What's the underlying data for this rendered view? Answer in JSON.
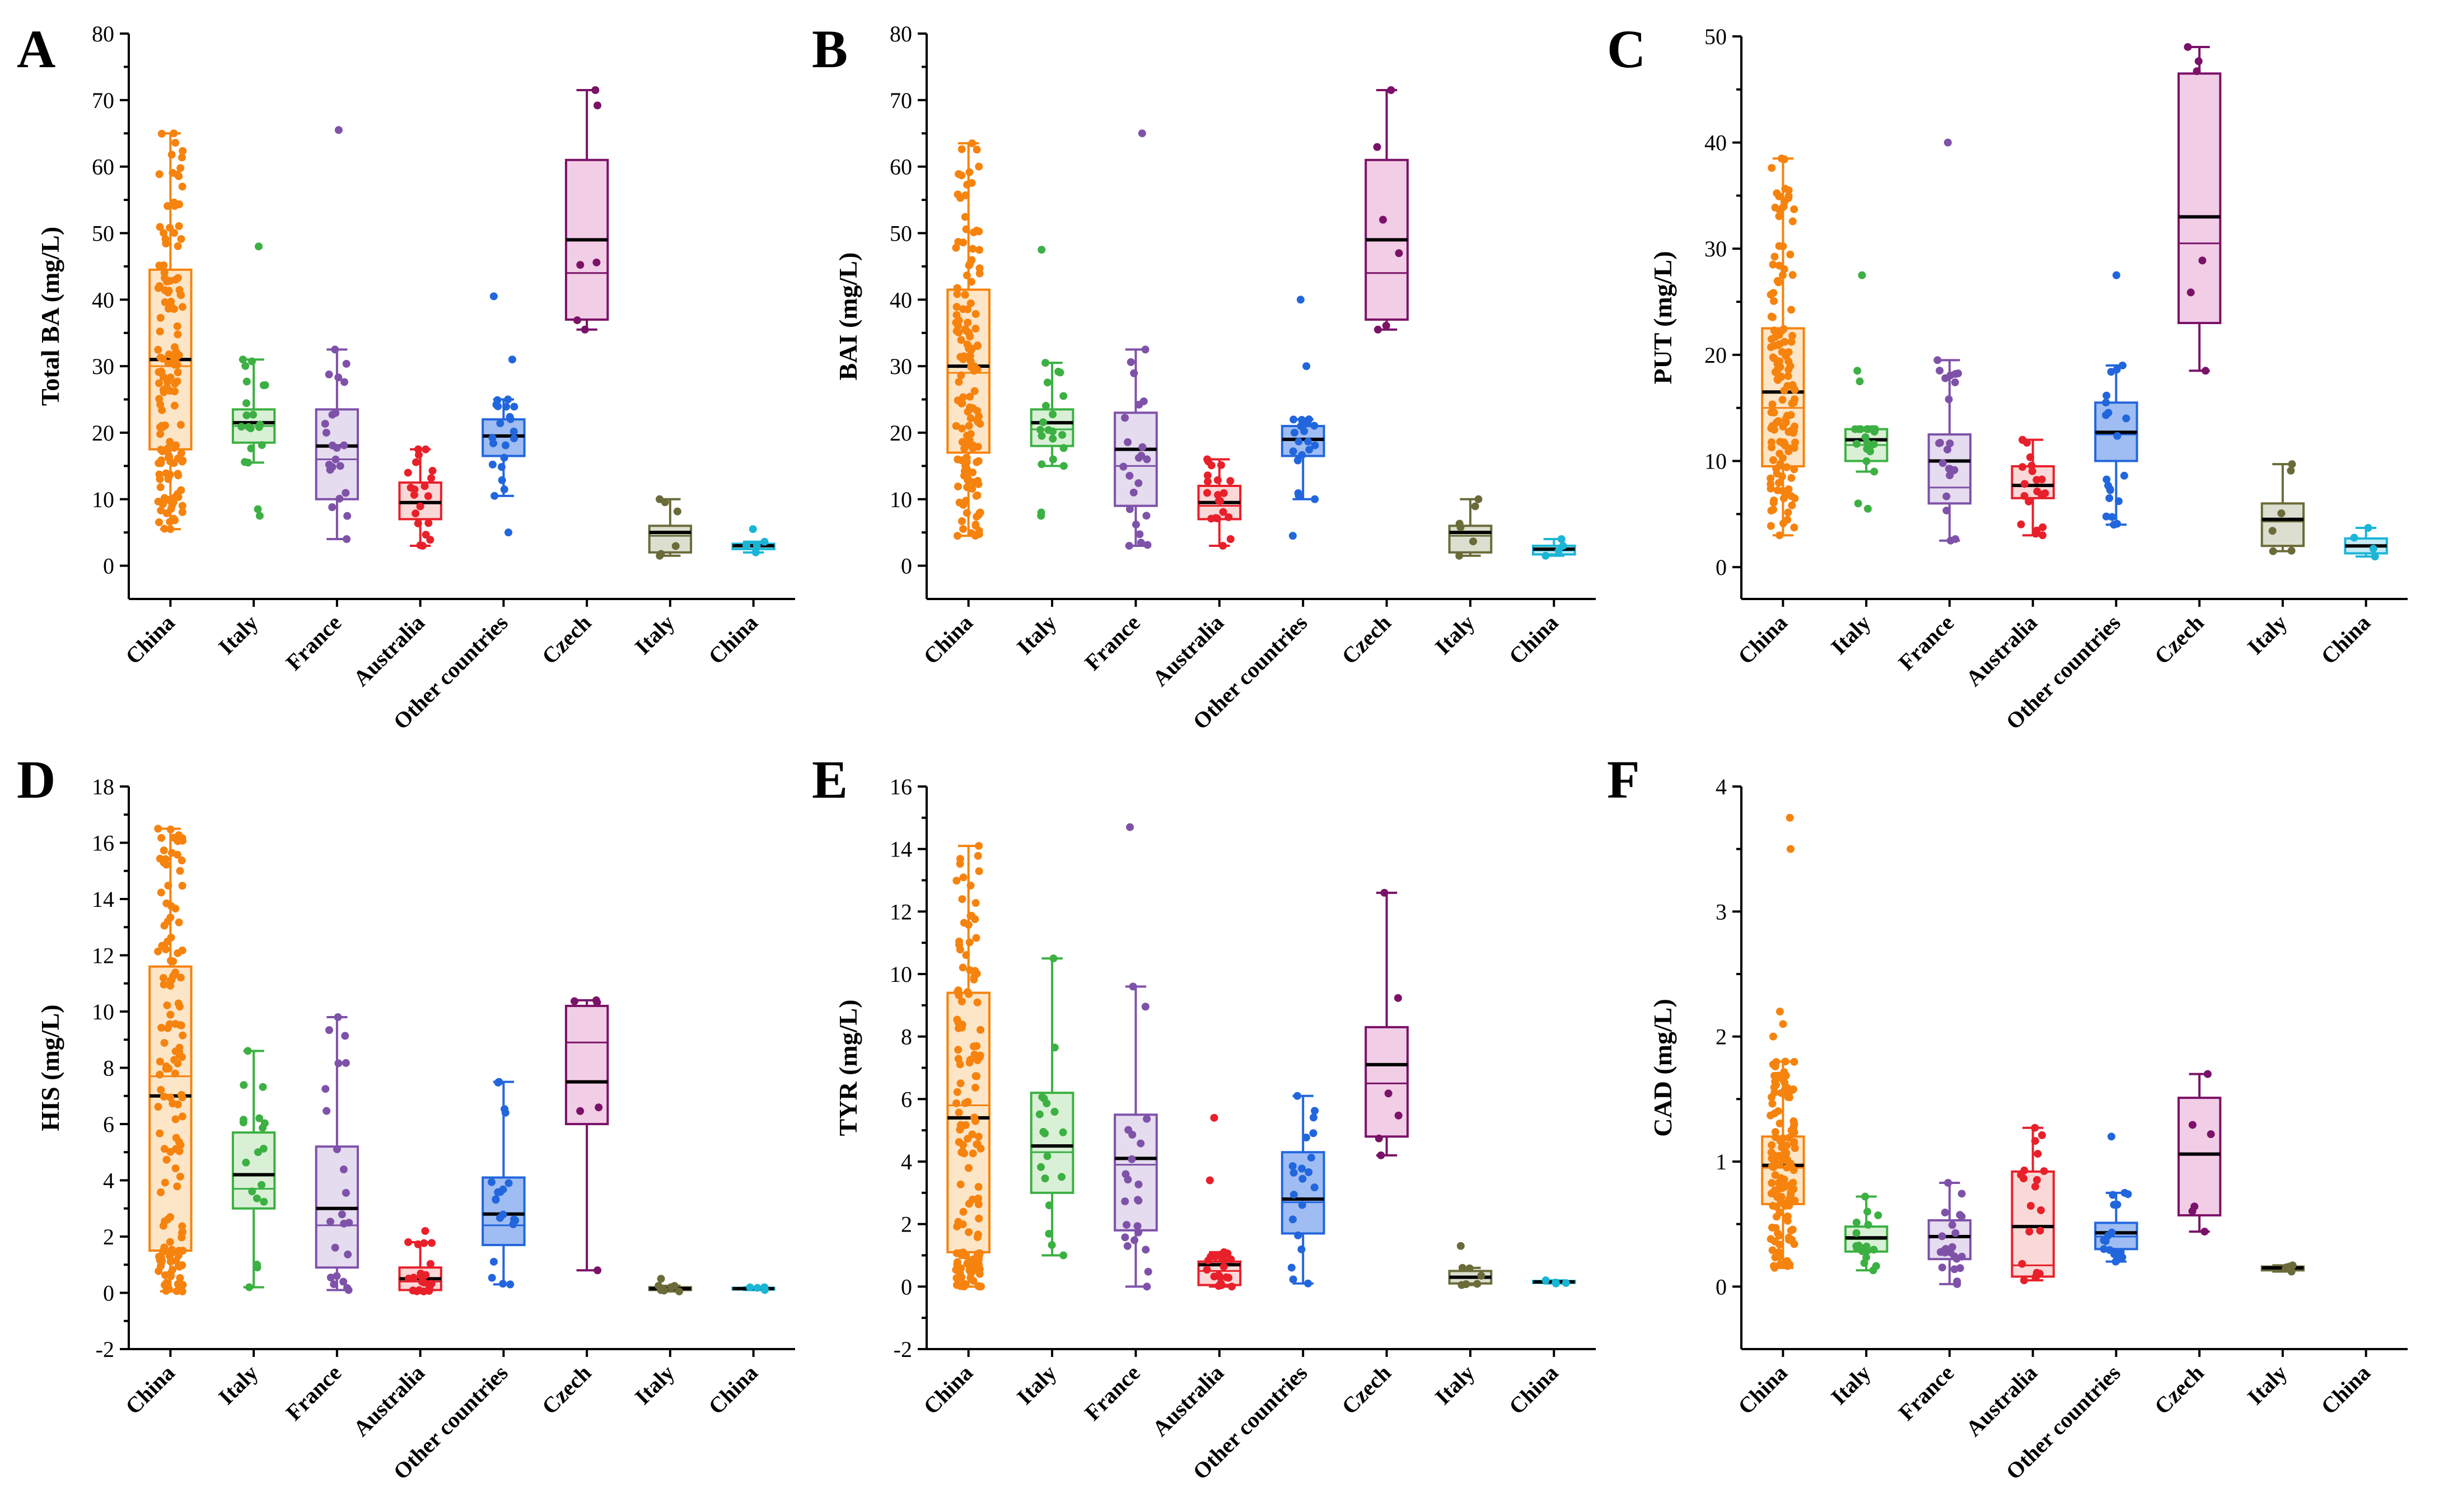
{
  "chart_data": [
    {
      "letter": "A",
      "type": "box",
      "ylabel": "Total BA (mg/L)",
      "ylim": [
        -5,
        80
      ],
      "yticks": [
        0,
        10,
        20,
        30,
        40,
        50,
        60,
        70,
        80
      ],
      "categories": [
        "China",
        "Italy",
        "France",
        "Australia",
        "Other countries",
        "Czech",
        "Italy",
        "China"
      ],
      "boxes": [
        {
          "min": 5.5,
          "q1": 17.5,
          "median": 31.0,
          "mean": 30.0,
          "q3": 44.5,
          "max": 65.0,
          "n": 140
        },
        {
          "min": 15.5,
          "q1": 18.5,
          "median": 21.5,
          "mean": 21.0,
          "q3": 23.5,
          "max": 31.0,
          "n": 18,
          "outliers": [
            7.5,
            8.5,
            48.0
          ]
        },
        {
          "min": 4.0,
          "q1": 10.0,
          "median": 18.0,
          "mean": 16.0,
          "q3": 23.5,
          "max": 32.5,
          "n": 22,
          "outliers": [
            65.5
          ]
        },
        {
          "min": 3.0,
          "q1": 7.0,
          "median": 9.5,
          "mean": 9.5,
          "q3": 12.5,
          "max": 17.5,
          "n": 20
        },
        {
          "min": 10.5,
          "q1": 16.5,
          "median": 19.5,
          "mean": 19.5,
          "q3": 22.0,
          "max": 25.0,
          "n": 20,
          "outliers": [
            5.0,
            31.0,
            40.5
          ]
        },
        {
          "min": 35.5,
          "q1": 37.0,
          "median": 49.0,
          "mean": 44.0,
          "q3": 61.0,
          "max": 71.5,
          "n": 6
        },
        {
          "min": 1.5,
          "q1": 2.0,
          "median": 5.0,
          "mean": 4.5,
          "q3": 6.0,
          "max": 10.0,
          "n": 6
        },
        {
          "min": 2.0,
          "q1": 2.5,
          "median": 3.0,
          "mean": 3.0,
          "q3": 3.3,
          "max": 3.6,
          "n": 4,
          "outliers": [
            5.5
          ]
        }
      ]
    },
    {
      "letter": "B",
      "type": "box",
      "ylabel": "BAI (mg/L)",
      "ylim": [
        -5,
        80
      ],
      "yticks": [
        0,
        10,
        20,
        30,
        40,
        50,
        60,
        70,
        80
      ],
      "categories": [
        "China",
        "Italy",
        "France",
        "Australia",
        "Other countries",
        "Czech",
        "Italy",
        "China"
      ],
      "boxes": [
        {
          "min": 4.5,
          "q1": 17.0,
          "median": 30.0,
          "mean": 29.0,
          "q3": 41.5,
          "max": 63.5,
          "n": 140
        },
        {
          "min": 15.0,
          "q1": 18.0,
          "median": 21.5,
          "mean": 20.5,
          "q3": 23.5,
          "max": 30.5,
          "n": 18,
          "outliers": [
            7.5,
            8.0,
            47.5
          ]
        },
        {
          "min": 3.0,
          "q1": 9.0,
          "median": 17.5,
          "mean": 15.0,
          "q3": 23.0,
          "max": 32.5,
          "n": 22,
          "outliers": [
            65.0
          ]
        },
        {
          "min": 3.0,
          "q1": 7.0,
          "median": 9.5,
          "mean": 9.0,
          "q3": 12.0,
          "max": 16.0,
          "n": 20
        },
        {
          "min": 10.0,
          "q1": 16.5,
          "median": 19.0,
          "mean": 19.0,
          "q3": 21.0,
          "max": 22.0,
          "n": 20,
          "outliers": [
            4.5,
            30.0,
            40.0
          ]
        },
        {
          "min": 35.5,
          "q1": 37.0,
          "median": 49.0,
          "mean": 44.0,
          "q3": 61.0,
          "max": 71.5,
          "n": 6
        },
        {
          "min": 1.5,
          "q1": 2.0,
          "median": 5.0,
          "mean": 4.5,
          "q3": 6.0,
          "max": 10.0,
          "n": 6
        },
        {
          "min": 1.5,
          "q1": 1.7,
          "median": 2.5,
          "mean": 2.3,
          "q3": 3.0,
          "max": 4.0,
          "n": 4
        }
      ]
    },
    {
      "letter": "C",
      "type": "box",
      "ylabel": "PUT (mg/L)",
      "ylim": [
        -3,
        50
      ],
      "yticks": [
        0,
        10,
        20,
        30,
        40,
        50
      ],
      "categories": [
        "China",
        "Italy",
        "France",
        "Australia",
        "Other countries",
        "Czech",
        "Italy",
        "China"
      ],
      "boxes": [
        {
          "min": 3.0,
          "q1": 9.5,
          "median": 16.5,
          "mean": 15.0,
          "q3": 22.5,
          "max": 38.5,
          "n": 140
        },
        {
          "min": 9.0,
          "q1": 10.0,
          "median": 12.0,
          "mean": 11.5,
          "q3": 13.0,
          "max": 13.0,
          "n": 18,
          "outliers": [
            5.5,
            6.0,
            17.5,
            18.5,
            27.5
          ]
        },
        {
          "min": 2.5,
          "q1": 6.0,
          "median": 10.0,
          "mean": 7.5,
          "q3": 12.5,
          "max": 19.5,
          "n": 22,
          "outliers": [
            40.0
          ]
        },
        {
          "min": 3.0,
          "q1": 6.5,
          "median": 7.7,
          "mean": 7.7,
          "q3": 9.5,
          "max": 12.0,
          "n": 20
        },
        {
          "min": 4.0,
          "q1": 10.0,
          "median": 12.7,
          "mean": 12.5,
          "q3": 15.5,
          "max": 19.0,
          "n": 20,
          "outliers": [
            27.5
          ]
        },
        {
          "min": 18.5,
          "q1": 23.0,
          "median": 33.0,
          "mean": 30.5,
          "q3": 46.5,
          "max": 49.0,
          "n": 6
        },
        {
          "min": 1.5,
          "q1": 2.0,
          "median": 4.5,
          "mean": 4.3,
          "q3": 6.0,
          "max": 9.7,
          "n": 6
        },
        {
          "min": 1.0,
          "q1": 1.3,
          "median": 2.0,
          "mean": 2.0,
          "q3": 2.7,
          "max": 3.7,
          "n": 4
        }
      ]
    },
    {
      "letter": "D",
      "type": "box",
      "ylabel": "HIS (mg/L)",
      "ylim": [
        -2,
        18
      ],
      "yticks": [
        -2,
        0,
        2,
        4,
        6,
        8,
        10,
        12,
        14,
        16,
        18
      ],
      "categories": [
        "China",
        "Italy",
        "France",
        "Australia",
        "Other countries",
        "Czech",
        "Italy",
        "China"
      ],
      "boxes": [
        {
          "min": 0.05,
          "q1": 1.5,
          "median": 7.0,
          "mean": 7.7,
          "q3": 11.6,
          "max": 16.5,
          "n": 140
        },
        {
          "min": 0.2,
          "q1": 3.0,
          "median": 4.2,
          "mean": 3.7,
          "q3": 5.7,
          "max": 8.6,
          "n": 18
        },
        {
          "min": 0.1,
          "q1": 0.9,
          "median": 3.0,
          "mean": 2.4,
          "q3": 5.2,
          "max": 9.8,
          "n": 22
        },
        {
          "min": 0.05,
          "q1": 0.1,
          "median": 0.5,
          "mean": 0.4,
          "q3": 0.9,
          "max": 1.8,
          "n": 20,
          "outliers": [
            2.2
          ]
        },
        {
          "min": 0.3,
          "q1": 1.7,
          "median": 2.8,
          "mean": 2.4,
          "q3": 4.1,
          "max": 7.5,
          "n": 20
        },
        {
          "min": 0.8,
          "q1": 6.0,
          "median": 7.5,
          "mean": 8.9,
          "q3": 10.2,
          "max": 10.4,
          "n": 6
        },
        {
          "min": 0.05,
          "q1": 0.1,
          "median": 0.15,
          "mean": 0.15,
          "q3": 0.2,
          "max": 0.25,
          "n": 6,
          "outliers": [
            0.5
          ]
        },
        {
          "min": 0.1,
          "q1": 0.12,
          "median": 0.15,
          "mean": 0.15,
          "q3": 0.18,
          "max": 0.2,
          "n": 4
        }
      ]
    },
    {
      "letter": "E",
      "type": "box",
      "ylabel": "TYR (mg/L)",
      "ylim": [
        -2,
        16
      ],
      "yticks": [
        -2,
        0,
        2,
        4,
        6,
        8,
        10,
        12,
        14,
        16
      ],
      "categories": [
        "China",
        "Italy",
        "France",
        "Australia",
        "Other countries",
        "Czech",
        "Italy",
        "China"
      ],
      "boxes": [
        {
          "min": 0.0,
          "q1": 1.1,
          "median": 5.4,
          "mean": 5.8,
          "q3": 9.4,
          "max": 14.1,
          "n": 140
        },
        {
          "min": 1.0,
          "q1": 3.0,
          "median": 4.5,
          "mean": 4.3,
          "q3": 6.2,
          "max": 10.5,
          "n": 18
        },
        {
          "min": 0.0,
          "q1": 1.8,
          "median": 4.1,
          "mean": 3.9,
          "q3": 5.5,
          "max": 9.6,
          "n": 22,
          "outliers": [
            14.7
          ]
        },
        {
          "min": 0.0,
          "q1": 0.05,
          "median": 0.7,
          "mean": 0.5,
          "q3": 0.8,
          "max": 1.1,
          "n": 20,
          "outliers": [
            3.4,
            5.4
          ]
        },
        {
          "min": 0.1,
          "q1": 1.7,
          "median": 2.8,
          "mean": 2.7,
          "q3": 4.3,
          "max": 6.1,
          "n": 20
        },
        {
          "min": 4.2,
          "q1": 4.8,
          "median": 7.1,
          "mean": 6.5,
          "q3": 8.3,
          "max": 12.6,
          "n": 6
        },
        {
          "min": 0.05,
          "q1": 0.1,
          "median": 0.3,
          "mean": 0.3,
          "q3": 0.5,
          "max": 0.6,
          "n": 6,
          "outliers": [
            1.3
          ]
        },
        {
          "min": 0.1,
          "q1": 0.12,
          "median": 0.15,
          "mean": 0.15,
          "q3": 0.18,
          "max": 0.2,
          "n": 4
        }
      ]
    },
    {
      "letter": "F",
      "type": "box",
      "ylabel": "CAD (mg/L)",
      "ylim": [
        -0.5,
        4
      ],
      "yticks": [
        0,
        1,
        2,
        3,
        4
      ],
      "categories": [
        "China",
        "Italy",
        "France",
        "Australia",
        "Other countries",
        "Czech",
        "Italy",
        "China"
      ],
      "boxes": [
        {
          "min": 0.15,
          "q1": 0.66,
          "median": 0.97,
          "mean": 0.95,
          "q3": 1.2,
          "max": 1.8,
          "n": 130,
          "outliers": [
            2.0,
            2.1,
            2.2,
            3.5,
            3.75
          ]
        },
        {
          "min": 0.13,
          "q1": 0.28,
          "median": 0.39,
          "mean": 0.38,
          "q3": 0.48,
          "max": 0.72,
          "n": 18
        },
        {
          "min": 0.02,
          "q1": 0.22,
          "median": 0.4,
          "mean": 0.4,
          "q3": 0.53,
          "max": 0.83,
          "n": 22
        },
        {
          "min": 0.05,
          "q1": 0.08,
          "median": 0.48,
          "mean": 0.17,
          "q3": 0.92,
          "max": 1.27,
          "n": 20
        },
        {
          "min": 0.2,
          "q1": 0.3,
          "median": 0.43,
          "mean": 0.4,
          "q3": 0.51,
          "max": 0.75,
          "n": 20,
          "outliers": [
            1.2
          ]
        },
        {
          "min": 0.44,
          "q1": 0.57,
          "median": 1.06,
          "mean": 1.06,
          "q3": 1.51,
          "max": 1.7,
          "n": 6
        },
        {
          "min": 0.12,
          "q1": 0.13,
          "median": 0.15,
          "mean": 0.15,
          "q3": 0.16,
          "max": 0.17,
          "n": 6
        },
        null
      ]
    }
  ],
  "colors": [
    "#f6830e",
    "#3cb043",
    "#7f52a9",
    "#e8202a",
    "#2266dd",
    "#7a1268",
    "#6b6b3a",
    "#1bb5d6"
  ],
  "box_fills": [
    "#fde5c7",
    "#d9f0d6",
    "#e5dcef",
    "#fbd8d8",
    "#9fbdf2",
    "#f2cde6",
    "#dcdfcf",
    "#c6ebf4"
  ]
}
